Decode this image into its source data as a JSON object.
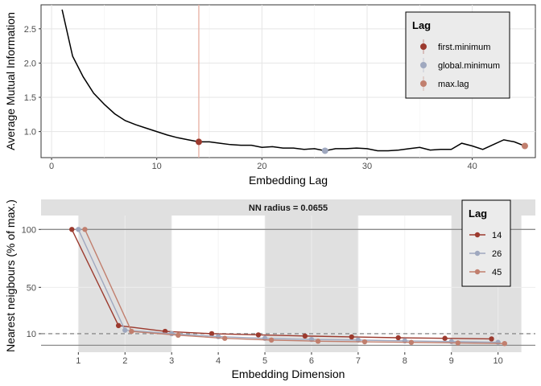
{
  "chart_data": [
    {
      "type": "line",
      "xlabel": "Embedding Lag",
      "ylabel": "Average Mutual Information",
      "xlim": [
        -1,
        46
      ],
      "ylim": [
        0.62,
        2.85
      ],
      "x_ticks": [
        0,
        10,
        20,
        30,
        40
      ],
      "y_ticks": [
        1.0,
        1.5,
        2.0,
        2.5
      ],
      "y_tick_labels": [
        "1.0",
        "1.5",
        "2.0",
        "2.5"
      ],
      "grid": true,
      "legend_position": "top-right",
      "legend": {
        "title": "Lag",
        "entries": [
          {
            "label": "first.minimum",
            "color": "#9c3a2e"
          },
          {
            "label": "global.minimum",
            "color": "#9fa8bf"
          },
          {
            "label": "max.lag",
            "color": "#c17f6e"
          }
        ]
      },
      "series": [
        {
          "x": [
            1,
            2,
            3,
            4,
            5,
            6,
            7,
            8,
            9,
            10,
            11,
            12,
            13,
            14,
            15,
            16,
            17,
            18,
            19,
            20,
            21,
            22,
            23,
            24,
            25,
            26,
            27,
            28,
            29,
            30,
            31,
            32,
            33,
            34,
            35,
            36,
            37,
            38,
            39,
            40,
            41,
            42,
            43,
            44,
            45
          ],
          "values": [
            2.78,
            2.1,
            1.8,
            1.56,
            1.4,
            1.26,
            1.16,
            1.1,
            1.05,
            1.0,
            0.95,
            0.91,
            0.88,
            0.85,
            0.85,
            0.83,
            0.81,
            0.8,
            0.8,
            0.77,
            0.78,
            0.76,
            0.76,
            0.74,
            0.75,
            0.72,
            0.75,
            0.75,
            0.76,
            0.75,
            0.72,
            0.72,
            0.73,
            0.75,
            0.77,
            0.73,
            0.74,
            0.74,
            0.83,
            0.79,
            0.74,
            0.81,
            0.88,
            0.85,
            0.79
          ],
          "color": "#000000"
        }
      ],
      "markers": [
        {
          "x": 14,
          "y": 0.85,
          "label": "first.minimum",
          "color": "#9c3a2e"
        },
        {
          "x": 26,
          "y": 0.72,
          "label": "global.minimum",
          "color": "#9fa8bf"
        },
        {
          "x": 45,
          "y": 0.79,
          "label": "max.lag",
          "color": "#c17f6e"
        }
      ],
      "vline": {
        "x": 14,
        "color": "#e8b4a8"
      }
    },
    {
      "type": "line",
      "strip_title": "NN radius = 0.0655",
      "xlabel": "Embedding Dimension",
      "ylabel": "Nearest neigbours (% of max.)",
      "xlim": [
        0.2,
        10.8
      ],
      "ylim": [
        -6,
        112
      ],
      "x_ticks": [
        1,
        2,
        3,
        4,
        5,
        6,
        7,
        8,
        9,
        10
      ],
      "y_ticks": [
        10,
        50,
        100
      ],
      "shaded_bands": [
        [
          1,
          2
        ],
        [
          2,
          3
        ],
        [
          5,
          7
        ],
        [
          9,
          10.5
        ]
      ],
      "hlines": [
        {
          "y": 100,
          "style": "solid"
        },
        {
          "y": 10,
          "style": "dashed"
        },
        {
          "y": 0,
          "style": "solid"
        }
      ],
      "grid": true,
      "legend_position": "top-right",
      "legend": {
        "title": "Lag",
        "entries": [
          {
            "label": "14",
            "color": "#9c3a2e"
          },
          {
            "label": "26",
            "color": "#9fa8bf"
          },
          {
            "label": "45",
            "color": "#c17f6e"
          }
        ]
      },
      "series": [
        {
          "name": "14",
          "color": "#9c3a2e",
          "x": [
            1,
            2,
            3,
            4,
            5,
            6,
            7,
            8,
            9,
            10
          ],
          "values": [
            100,
            17,
            12,
            10,
            9,
            8,
            7.2,
            6.5,
            6,
            5.5
          ]
        },
        {
          "name": "26",
          "color": "#9fa8bf",
          "x": [
            1,
            2,
            3,
            4,
            5,
            6,
            7,
            8,
            9,
            10
          ],
          "values": [
            100,
            13,
            10,
            7.5,
            6,
            5,
            4.5,
            3.8,
            3.2,
            2.5
          ]
        },
        {
          "name": "45",
          "color": "#c17f6e",
          "x": [
            1,
            2,
            3,
            4,
            5,
            6,
            7,
            8,
            9,
            10
          ],
          "values": [
            100,
            12,
            8.7,
            6,
            4.5,
            3.5,
            3,
            2.5,
            2,
            1.5
          ]
        }
      ]
    }
  ]
}
